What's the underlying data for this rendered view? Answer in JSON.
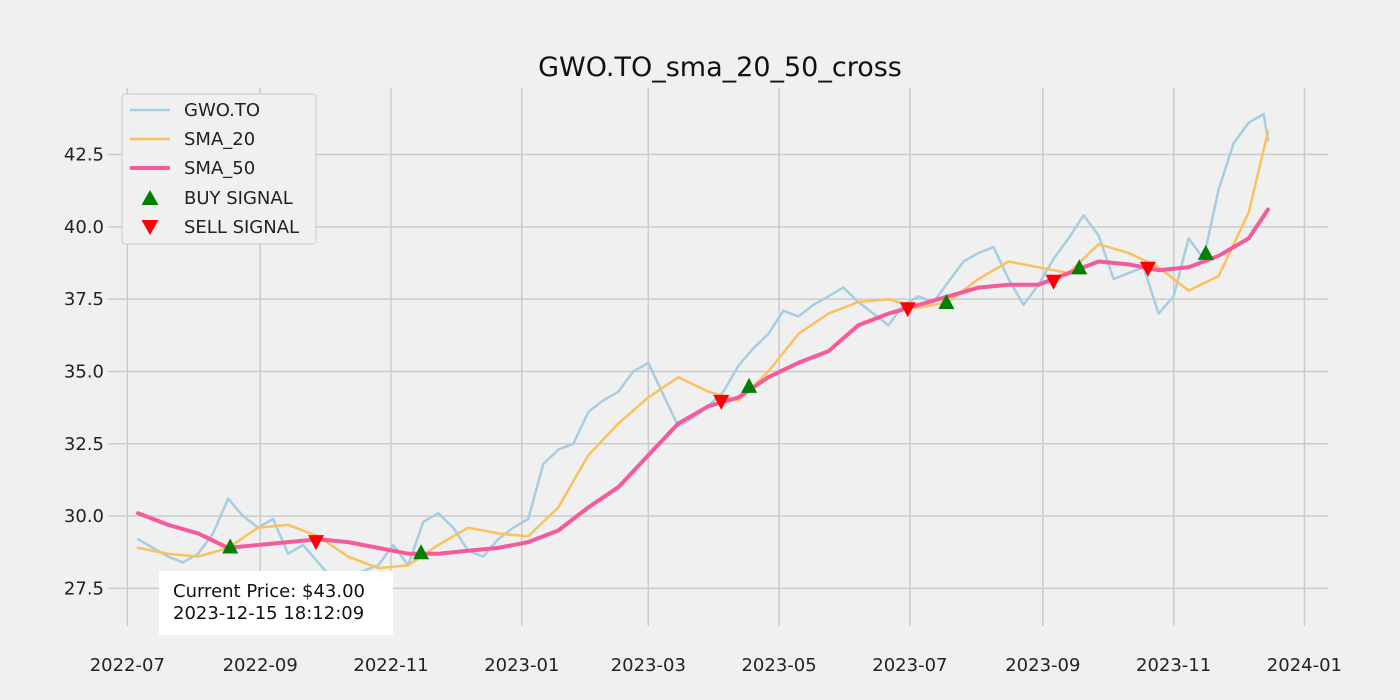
{
  "chart_data": {
    "type": "line",
    "title": "GWO.TO_sma_20_50_cross",
    "xlabel": "",
    "ylabel": "",
    "xlim": [
      "2022-06-22",
      "2024-01-12"
    ],
    "ylim": [
      26.2,
      44.8
    ],
    "grid": true,
    "legend_position": "top-left",
    "x_ticks": [
      "2022-07-01",
      "2022-09-01",
      "2022-11-01",
      "2023-01-01",
      "2023-03-01",
      "2023-05-01",
      "2023-07-01",
      "2023-09-01",
      "2023-11-01",
      "2024-01-01"
    ],
    "x_tick_labels": [
      "2022-07",
      "2022-09",
      "2022-11",
      "2023-01",
      "2023-03",
      "2023-05",
      "2023-07",
      "2023-09",
      "2023-11",
      "2024-01"
    ],
    "y_ticks": [
      27.5,
      30.0,
      32.5,
      35.0,
      37.5,
      40.0,
      42.5
    ],
    "y_tick_labels": [
      "27.5",
      "30.0",
      "32.5",
      "35.0",
      "37.5",
      "40.0",
      "42.5"
    ],
    "series": [
      {
        "name": "GWO.TO",
        "color": "#a6cee3",
        "x": [
          "2022-07-06",
          "2022-07-13",
          "2022-07-20",
          "2022-07-27",
          "2022-08-03",
          "2022-08-10",
          "2022-08-17",
          "2022-08-24",
          "2022-08-31",
          "2022-09-07",
          "2022-09-14",
          "2022-09-21",
          "2022-09-28",
          "2022-10-05",
          "2022-10-12",
          "2022-10-19",
          "2022-10-26",
          "2022-11-02",
          "2022-11-09",
          "2022-11-16",
          "2022-11-23",
          "2022-11-30",
          "2022-12-07",
          "2022-12-14",
          "2022-12-21",
          "2022-12-28",
          "2023-01-04",
          "2023-01-11",
          "2023-01-18",
          "2023-01-25",
          "2023-02-01",
          "2023-02-08",
          "2023-02-15",
          "2023-02-22",
          "2023-03-01",
          "2023-03-08",
          "2023-03-15",
          "2023-03-22",
          "2023-03-29",
          "2023-04-05",
          "2023-04-12",
          "2023-04-19",
          "2023-04-26",
          "2023-05-03",
          "2023-05-10",
          "2023-05-17",
          "2023-05-24",
          "2023-05-31",
          "2023-06-07",
          "2023-06-14",
          "2023-06-21",
          "2023-06-28",
          "2023-07-05",
          "2023-07-12",
          "2023-07-19",
          "2023-07-26",
          "2023-08-02",
          "2023-08-09",
          "2023-08-16",
          "2023-08-23",
          "2023-08-30",
          "2023-09-06",
          "2023-09-13",
          "2023-09-20",
          "2023-09-27",
          "2023-10-04",
          "2023-10-11",
          "2023-10-18",
          "2023-10-25",
          "2023-11-01",
          "2023-11-08",
          "2023-11-15",
          "2023-11-22",
          "2023-11-29",
          "2023-12-06",
          "2023-12-13",
          "2023-12-15"
        ],
        "values": [
          29.2,
          28.9,
          28.6,
          28.4,
          28.7,
          29.4,
          30.6,
          30.0,
          29.6,
          29.9,
          28.7,
          29.0,
          28.4,
          27.8,
          27.9,
          28.1,
          28.3,
          29.0,
          28.3,
          29.8,
          30.1,
          29.6,
          28.8,
          28.6,
          29.2,
          29.6,
          29.9,
          31.8,
          32.3,
          32.5,
          33.6,
          34.0,
          34.3,
          35.0,
          35.3,
          34.2,
          33.1,
          33.4,
          33.8,
          34.3,
          35.2,
          35.8,
          36.3,
          37.1,
          36.9,
          37.3,
          37.6,
          37.9,
          37.4,
          37.0,
          36.6,
          37.3,
          37.6,
          37.4,
          38.1,
          38.8,
          39.1,
          39.3,
          38.2,
          37.3,
          38.0,
          38.9,
          39.6,
          40.4,
          39.7,
          38.2,
          38.4,
          38.6,
          37.0,
          37.6,
          39.6,
          38.9,
          41.3,
          42.9,
          43.6,
          43.9,
          43.0
        ]
      },
      {
        "name": "SMA_20",
        "color": "#fbc15e",
        "x": [
          "2022-07-06",
          "2022-07-20",
          "2022-08-03",
          "2022-08-17",
          "2022-08-31",
          "2022-09-14",
          "2022-09-28",
          "2022-10-12",
          "2022-10-26",
          "2022-11-09",
          "2022-11-23",
          "2022-12-07",
          "2022-12-21",
          "2023-01-04",
          "2023-01-18",
          "2023-02-01",
          "2023-02-15",
          "2023-03-01",
          "2023-03-15",
          "2023-03-29",
          "2023-04-12",
          "2023-04-26",
          "2023-05-10",
          "2023-05-24",
          "2023-06-07",
          "2023-06-21",
          "2023-07-05",
          "2023-07-19",
          "2023-08-02",
          "2023-08-16",
          "2023-08-30",
          "2023-09-13",
          "2023-09-27",
          "2023-10-11",
          "2023-10-25",
          "2023-11-08",
          "2023-11-22",
          "2023-12-06",
          "2023-12-15"
        ],
        "values": [
          28.9,
          28.7,
          28.6,
          28.9,
          29.6,
          29.7,
          29.3,
          28.6,
          28.2,
          28.3,
          29.0,
          29.6,
          29.4,
          29.3,
          30.3,
          32.1,
          33.2,
          34.1,
          34.8,
          34.3,
          34.0,
          35.0,
          36.3,
          37.0,
          37.4,
          37.5,
          37.2,
          37.4,
          38.2,
          38.8,
          38.6,
          38.4,
          39.4,
          39.1,
          38.6,
          37.8,
          38.3,
          40.5,
          43.3
        ]
      },
      {
        "name": "SMA_50",
        "color": "#f45b9a",
        "x": [
          "2022-07-06",
          "2022-07-20",
          "2022-08-03",
          "2022-08-17",
          "2022-08-31",
          "2022-09-14",
          "2022-09-28",
          "2022-10-12",
          "2022-10-26",
          "2022-11-09",
          "2022-11-23",
          "2022-12-07",
          "2022-12-21",
          "2023-01-04",
          "2023-01-18",
          "2023-02-01",
          "2023-02-15",
          "2023-03-01",
          "2023-03-15",
          "2023-03-29",
          "2023-04-12",
          "2023-04-26",
          "2023-05-10",
          "2023-05-24",
          "2023-06-07",
          "2023-06-21",
          "2023-07-05",
          "2023-07-19",
          "2023-08-02",
          "2023-08-16",
          "2023-08-30",
          "2023-09-13",
          "2023-09-27",
          "2023-10-11",
          "2023-10-25",
          "2023-11-08",
          "2023-11-22",
          "2023-12-06",
          "2023-12-15"
        ],
        "values": [
          30.1,
          29.7,
          29.4,
          28.9,
          29.0,
          29.1,
          29.2,
          29.1,
          28.9,
          28.7,
          28.7,
          28.8,
          28.9,
          29.1,
          29.5,
          30.3,
          31.0,
          32.1,
          33.2,
          33.8,
          34.1,
          34.8,
          35.3,
          35.7,
          36.6,
          37.0,
          37.3,
          37.6,
          37.9,
          38.0,
          38.0,
          38.4,
          38.8,
          38.7,
          38.5,
          38.6,
          39.0,
          39.6,
          40.6
        ]
      }
    ],
    "signals": {
      "buy": {
        "name": "BUY SIGNAL",
        "color": "#008000",
        "x": [
          "2022-08-18",
          "2022-11-15",
          "2023-04-17",
          "2023-07-18",
          "2023-09-18",
          "2023-11-16"
        ],
        "values": [
          28.95,
          28.75,
          34.5,
          37.4,
          38.6,
          39.1
        ]
      },
      "sell": {
        "name": "SELL SIGNAL",
        "color": "#ff0000",
        "x": [
          "2022-09-27",
          "2023-04-04",
          "2023-06-30",
          "2023-09-06",
          "2023-10-20"
        ],
        "values": [
          29.1,
          33.95,
          37.15,
          38.1,
          38.55
        ]
      }
    },
    "annotation": {
      "line1": "Current Price: $43.00",
      "line2": "2023-12-15 18:12:09"
    }
  }
}
